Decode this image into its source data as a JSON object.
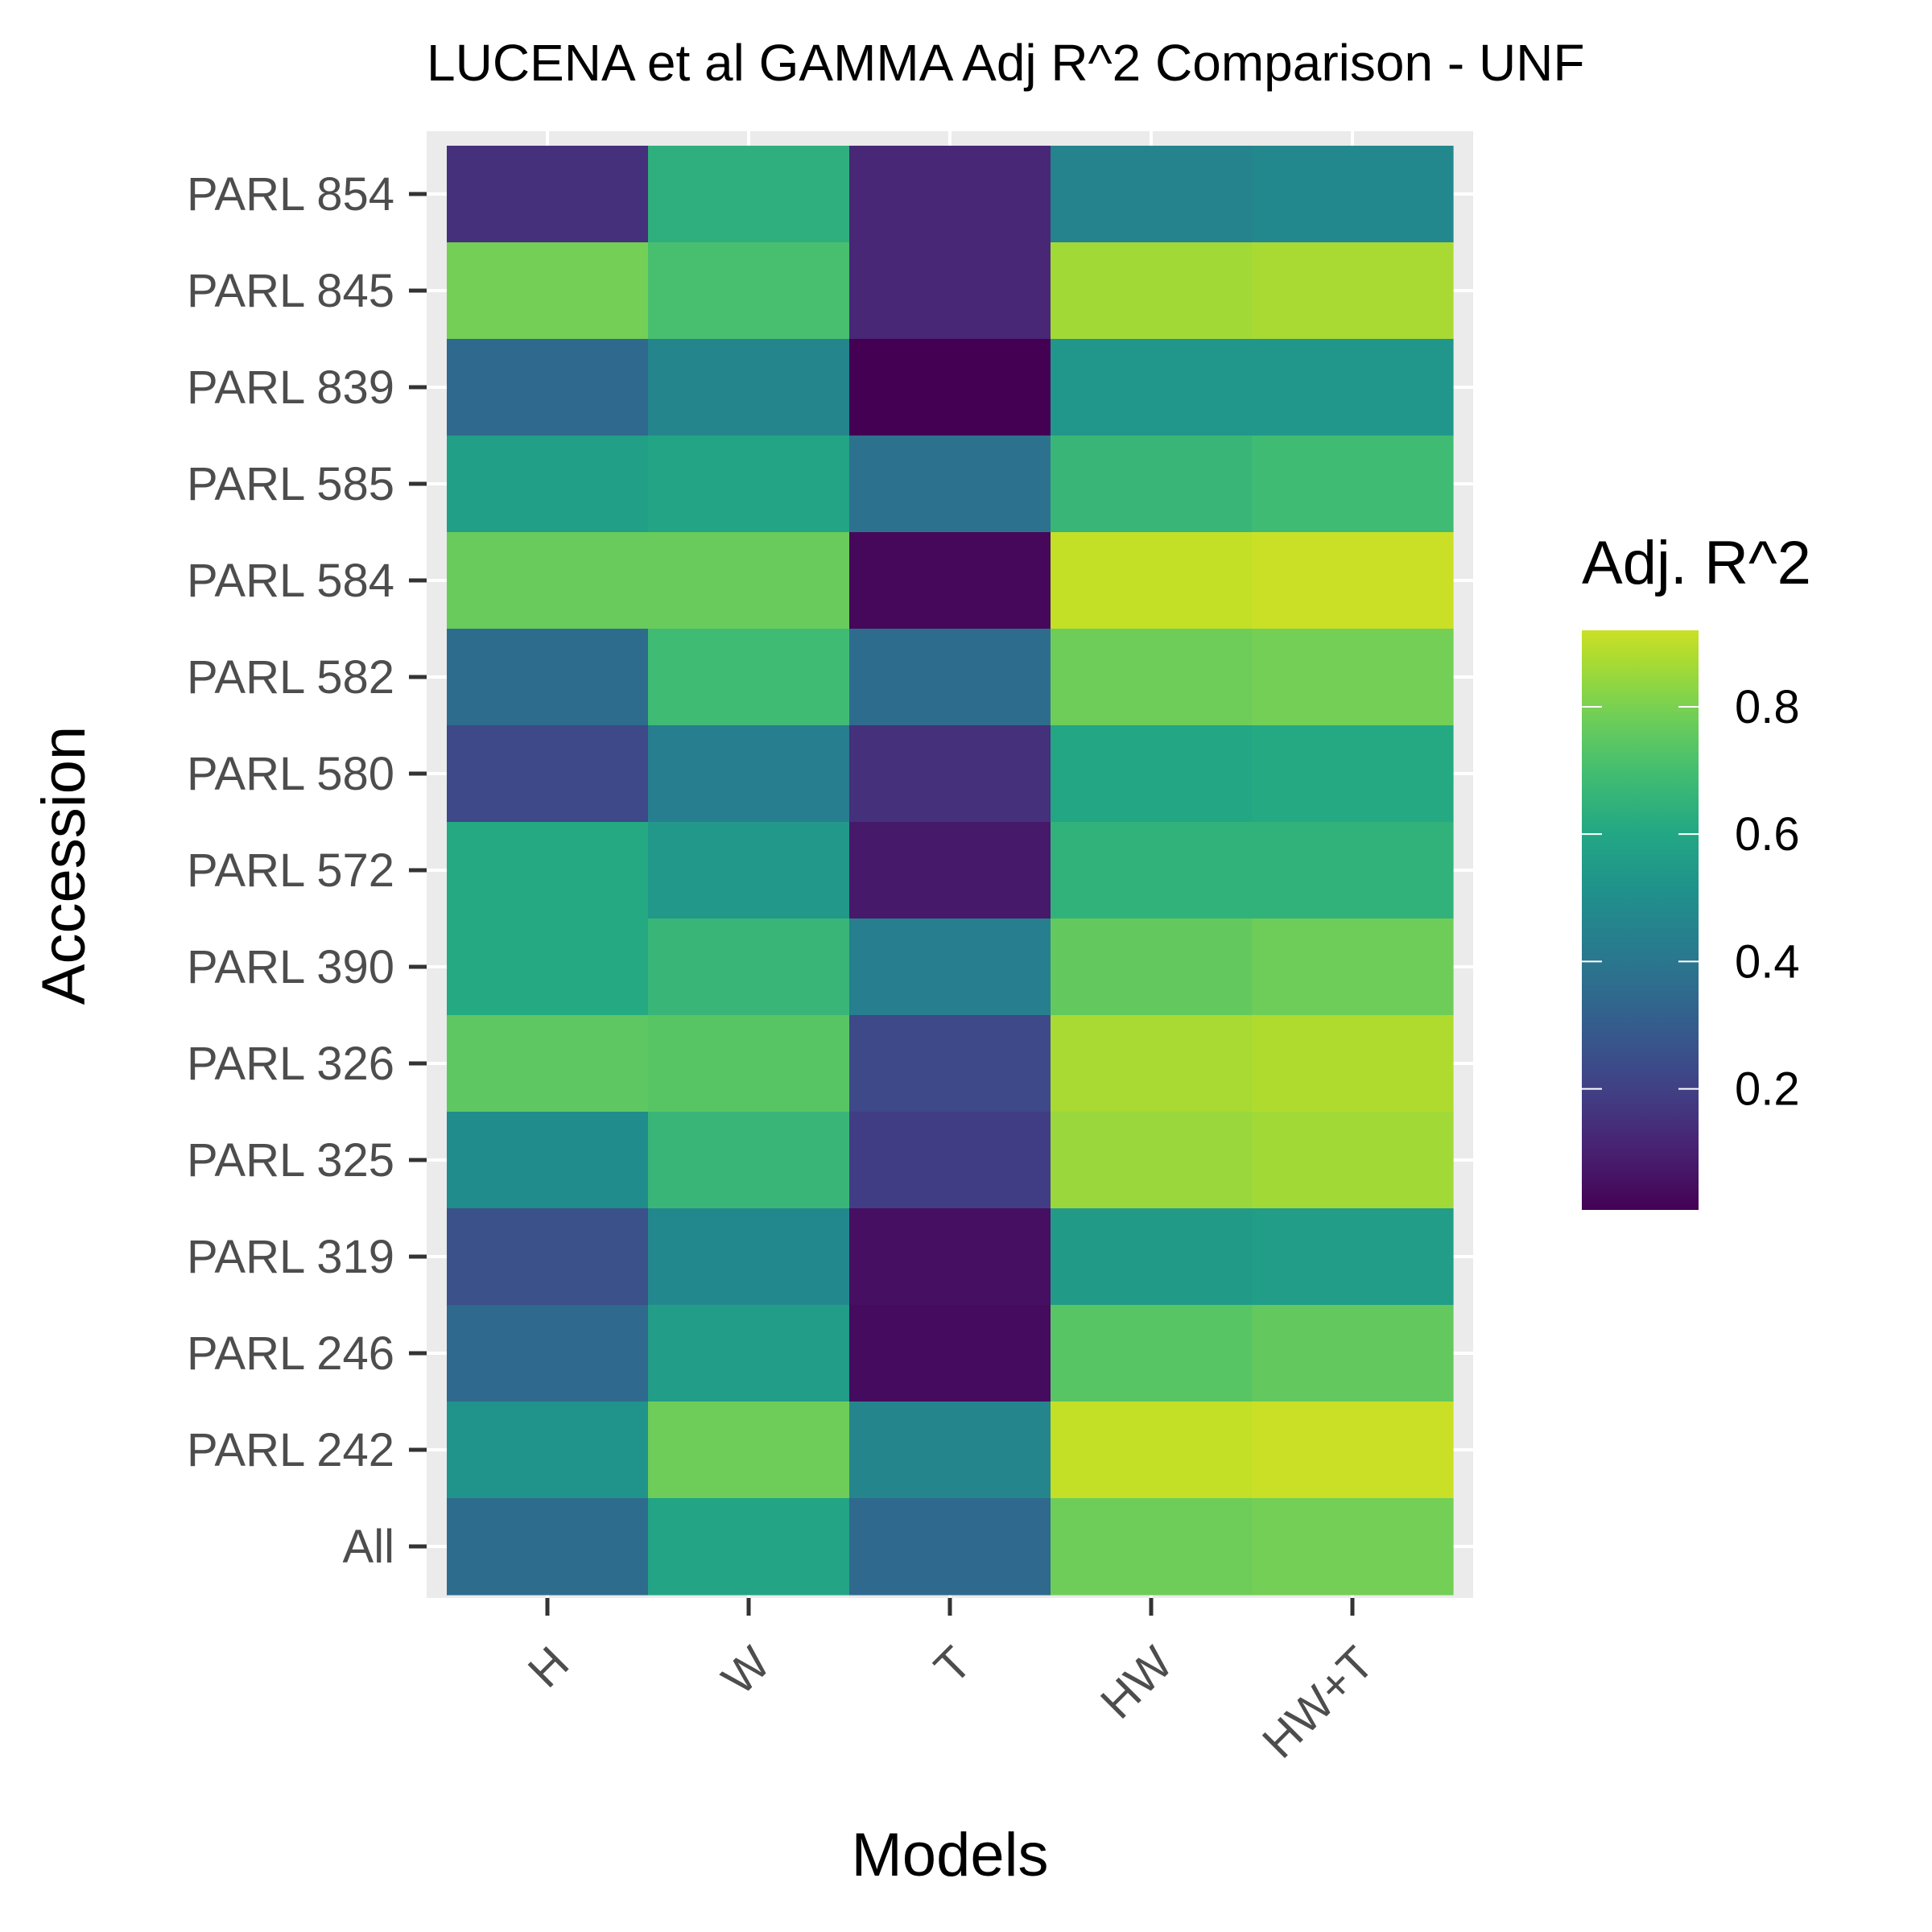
{
  "chart_data": {
    "type": "heatmap",
    "title": "LUCENA et al GAMMA Adj R^2 Comparison - UNF",
    "xlabel": "Models",
    "ylabel": "Accession",
    "x_categories": [
      "H",
      "W",
      "T",
      "HW",
      "HW+T"
    ],
    "y_categories": [
      "PARL 854",
      "PARL 845",
      "PARL 839",
      "PARL 585",
      "PARL 584",
      "PARL 582",
      "PARL 580",
      "PARL 572",
      "PARL 390",
      "PARL 326",
      "PARL 325",
      "PARL 319",
      "PARL 246",
      "PARL 242",
      "All"
    ],
    "values": [
      [
        0.15,
        0.64,
        0.12,
        0.45,
        0.47
      ],
      [
        0.79,
        0.71,
        0.12,
        0.86,
        0.87
      ],
      [
        0.35,
        0.46,
        0.01,
        0.53,
        0.53
      ],
      [
        0.57,
        0.59,
        0.38,
        0.67,
        0.69
      ],
      [
        0.77,
        0.77,
        0.03,
        0.91,
        0.92
      ],
      [
        0.36,
        0.69,
        0.36,
        0.78,
        0.79
      ],
      [
        0.23,
        0.43,
        0.15,
        0.6,
        0.61
      ],
      [
        0.61,
        0.54,
        0.08,
        0.65,
        0.65
      ],
      [
        0.61,
        0.67,
        0.43,
        0.76,
        0.78
      ],
      [
        0.75,
        0.74,
        0.23,
        0.87,
        0.88
      ],
      [
        0.49,
        0.67,
        0.19,
        0.85,
        0.86
      ],
      [
        0.26,
        0.47,
        0.05,
        0.55,
        0.56
      ],
      [
        0.35,
        0.56,
        0.04,
        0.74,
        0.76
      ],
      [
        0.52,
        0.78,
        0.46,
        0.91,
        0.92
      ],
      [
        0.36,
        0.59,
        0.35,
        0.78,
        0.79
      ]
    ],
    "colorbar": {
      "title": "Adj. R^2",
      "ticks": [
        "0.2",
        "0.4",
        "0.6",
        "0.8"
      ],
      "tick_values": [
        0.2,
        0.4,
        0.6,
        0.8
      ],
      "range": [
        0.01,
        0.92
      ],
      "palette": "viridis"
    },
    "grid": true,
    "legend_position": "right",
    "colors": {
      "panel_background": "#ebebeb",
      "grid_line": "#ffffff",
      "tick_text": "#4d4d4d",
      "tick_mark": "#333333"
    }
  }
}
